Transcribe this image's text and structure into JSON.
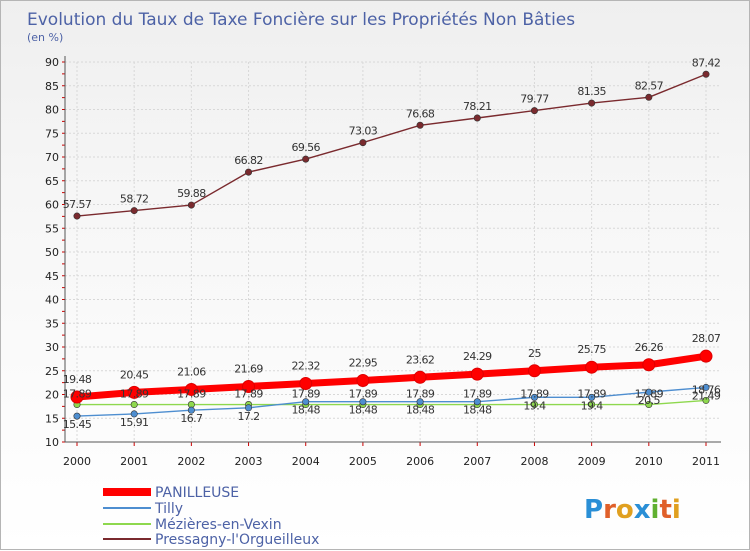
{
  "chart_data": {
    "type": "line",
    "title": "Evolution du Taux de Taxe Foncière sur les Propriétés Non Bâties",
    "unit_label": "(en %)",
    "xlabel": "",
    "ylabel": "",
    "ylim": [
      10,
      90
    ],
    "yticks": [
      "10",
      "15",
      "20",
      "25",
      "30",
      "35",
      "40",
      "45",
      "50",
      "55",
      "60",
      "65",
      "70",
      "75",
      "80",
      "85",
      "90"
    ],
    "categories": [
      "2000",
      "2001",
      "2002",
      "2003",
      "2004",
      "2005",
      "2006",
      "2007",
      "2008",
      "2009",
      "2010",
      "2011"
    ],
    "series": [
      {
        "name": "PANILLEUSE",
        "color": "#ff0000",
        "values": [
          19.48,
          20.45,
          21.06,
          21.69,
          22.32,
          22.95,
          23.62,
          24.29,
          25,
          25.75,
          26.26,
          28.07
        ],
        "labels": [
          "19.48",
          "20.45",
          "21.06",
          "21.69",
          "22.32",
          "22.95",
          "23.62",
          "24.29",
          "25",
          "25.75",
          "26.26",
          "28.07"
        ]
      },
      {
        "name": "Tilly",
        "color": "#4e8ed0",
        "values": [
          15.45,
          15.91,
          16.7,
          17.2,
          18.48,
          18.48,
          18.48,
          18.48,
          19.4,
          19.4,
          20.5,
          21.49
        ],
        "labels": [
          "15.45",
          "15.91",
          "16.7",
          "17.2",
          "18.48",
          "18.48",
          "18.48",
          "18.48",
          "19.4",
          "19.4",
          "20.5",
          "21.49"
        ]
      },
      {
        "name": "Mézières-en-Vexin",
        "color": "#8ed84e",
        "values": [
          17.89,
          17.89,
          17.89,
          17.89,
          17.89,
          17.89,
          17.89,
          17.89,
          17.89,
          17.89,
          17.89,
          18.76
        ],
        "labels": [
          "17.89",
          "17.89",
          "17.89",
          "17.89",
          "17.89",
          "17.89",
          "17.89",
          "17.89",
          "17.89",
          "17.89",
          "17.89",
          "18.76"
        ]
      },
      {
        "name": "Pressagny-l'Orgueilleux",
        "color": "#7a2a2e",
        "values": [
          57.57,
          58.72,
          59.88,
          66.82,
          69.56,
          73.03,
          76.68,
          78.21,
          79.77,
          81.35,
          82.57,
          87.42
        ],
        "labels": [
          "57.57",
          "58.72",
          "59.88",
          "66.82",
          "69.56",
          "73.03",
          "76.68",
          "78.21",
          "79.77",
          "81.35",
          "82.57",
          "87.42"
        ]
      }
    ]
  },
  "logo": {
    "letters": [
      "P",
      "r",
      "o",
      "x",
      "i",
      "t",
      "i"
    ],
    "colors": [
      "#2a8fd6",
      "#e0602a",
      "#e0a020",
      "#2a8fd6",
      "#60b030",
      "#e0602a",
      "#e0a020"
    ]
  }
}
